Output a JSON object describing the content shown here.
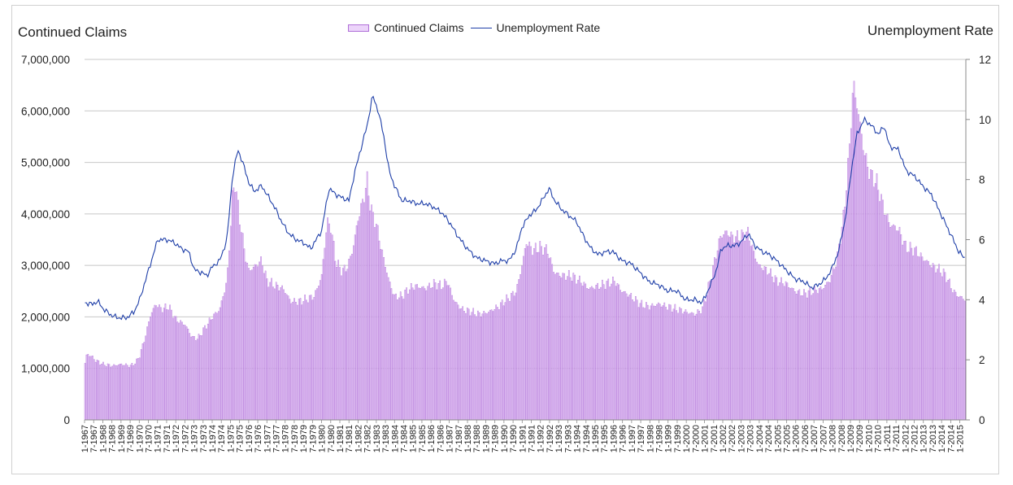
{
  "chart_data": {
    "type": "bar+line",
    "left_axis_title": "Continued Claims",
    "right_axis_title": "Unemployment Rate",
    "legend": [
      "Continued Claims",
      "Unemployment Rate"
    ],
    "left_ylim": [
      0,
      7000000
    ],
    "left_ticks": [
      "0",
      "1,000,000",
      "2,000,000",
      "3,000,000",
      "4,000,000",
      "5,000,000",
      "6,000,000",
      "7,000,000"
    ],
    "right_ylim": [
      0,
      12
    ],
    "right_ticks": [
      "0",
      "2",
      "4",
      "6",
      "8",
      "10",
      "12"
    ],
    "x_ticks": [
      "1-1967",
      "7-1967",
      "1-1968",
      "7-1968",
      "1-1969",
      "7-1969",
      "1-1970",
      "7-1970",
      "1-1971",
      "7-1971",
      "1-1972",
      "7-1972",
      "1-1973",
      "7-1973",
      "1-1974",
      "7-1974",
      "1-1975",
      "7-1975",
      "1-1976",
      "7-1976",
      "1-1977",
      "7-1977",
      "1-1978",
      "7-1978",
      "1-1979",
      "7-1979",
      "1-1980",
      "7-1980",
      "1-1981",
      "7-1981",
      "1-1982",
      "7-1982",
      "1-1983",
      "7-1983",
      "1-1984",
      "7-1984",
      "1-1985",
      "7-1985",
      "1-1986",
      "7-1986",
      "1-1987",
      "7-1987",
      "1-1988",
      "7-1988",
      "1-1989",
      "7-1989",
      "1-1990",
      "7-1990",
      "1-1991",
      "7-1991",
      "1-1992",
      "7-1992",
      "1-1993",
      "7-1993",
      "1-1994",
      "7-1994",
      "1-1995",
      "7-1995",
      "1-1996",
      "7-1996",
      "1-1997",
      "7-1997",
      "1-1998",
      "7-1998",
      "1-1999",
      "7-1999",
      "1-2000",
      "7-2000",
      "1-2001",
      "7-2001",
      "1-2002",
      "7-2002",
      "1-2003",
      "7-2003",
      "1-2004",
      "7-2004",
      "1-2005",
      "7-2005",
      "1-2006",
      "7-2006",
      "1-2007",
      "7-2007",
      "1-2008",
      "7-2008",
      "1-2009",
      "7-2009",
      "1-2010",
      "7-2010",
      "1-2011",
      "7-2011",
      "1-2012",
      "7-2012",
      "1-2013",
      "7-2013",
      "1-2014",
      "7-2014",
      "1-2015"
    ],
    "claims_anchors": [
      [
        1967.0,
        1100000
      ],
      [
        1967.1,
        1280000
      ],
      [
        1967.3,
        1250000
      ],
      [
        1967.6,
        1150000
      ],
      [
        1968.0,
        1080000
      ],
      [
        1968.5,
        1050000
      ],
      [
        1969.0,
        1080000
      ],
      [
        1969.5,
        1050000
      ],
      [
        1969.8,
        1120000
      ],
      [
        1970.0,
        1250000
      ],
      [
        1970.3,
        1600000
      ],
      [
        1970.6,
        2050000
      ],
      [
        1970.9,
        2250000
      ],
      [
        1971.2,
        2150000
      ],
      [
        1971.6,
        2200000
      ],
      [
        1972.0,
        1950000
      ],
      [
        1972.5,
        1850000
      ],
      [
        1972.9,
        1600000
      ],
      [
        1973.2,
        1580000
      ],
      [
        1973.6,
        1800000
      ],
      [
        1974.0,
        2000000
      ],
      [
        1974.4,
        2150000
      ],
      [
        1974.8,
        2700000
      ],
      [
        1975.1,
        4400000
      ],
      [
        1975.25,
        4600000
      ],
      [
        1975.5,
        3900000
      ],
      [
        1975.8,
        3200000
      ],
      [
        1976.0,
        2900000
      ],
      [
        1976.4,
        3000000
      ],
      [
        1976.7,
        3100000
      ],
      [
        1977.0,
        2700000
      ],
      [
        1977.5,
        2600000
      ],
      [
        1977.9,
        2550000
      ],
      [
        1978.3,
        2300000
      ],
      [
        1978.8,
        2300000
      ],
      [
        1979.2,
        2350000
      ],
      [
        1979.6,
        2400000
      ],
      [
        1980.0,
        2800000
      ],
      [
        1980.3,
        3850000
      ],
      [
        1980.5,
        3750000
      ],
      [
        1980.8,
        3050000
      ],
      [
        1981.1,
        2900000
      ],
      [
        1981.4,
        2950000
      ],
      [
        1981.7,
        3300000
      ],
      [
        1982.0,
        3900000
      ],
      [
        1982.3,
        4300000
      ],
      [
        1982.5,
        4650000
      ],
      [
        1982.7,
        4100000
      ],
      [
        1983.0,
        3800000
      ],
      [
        1983.3,
        3300000
      ],
      [
        1983.7,
        2700000
      ],
      [
        1984.0,
        2400000
      ],
      [
        1984.4,
        2400000
      ],
      [
        1984.8,
        2550000
      ],
      [
        1985.2,
        2600000
      ],
      [
        1985.7,
        2550000
      ],
      [
        1986.2,
        2650000
      ],
      [
        1986.6,
        2600000
      ],
      [
        1986.9,
        2700000
      ],
      [
        1987.3,
        2300000
      ],
      [
        1987.7,
        2150000
      ],
      [
        1988.2,
        2100000
      ],
      [
        1988.7,
        2050000
      ],
      [
        1989.2,
        2100000
      ],
      [
        1989.7,
        2200000
      ],
      [
        1990.2,
        2350000
      ],
      [
        1990.7,
        2500000
      ],
      [
        1991.0,
        3000000
      ],
      [
        1991.25,
        3450000
      ],
      [
        1991.6,
        3300000
      ],
      [
        1992.0,
        3350000
      ],
      [
        1992.4,
        3300000
      ],
      [
        1992.8,
        2850000
      ],
      [
        1993.2,
        2800000
      ],
      [
        1993.7,
        2800000
      ],
      [
        1994.2,
        2700000
      ],
      [
        1994.7,
        2550000
      ],
      [
        1995.2,
        2600000
      ],
      [
        1995.7,
        2650000
      ],
      [
        1996.1,
        2700000
      ],
      [
        1996.5,
        2500000
      ],
      [
        1997.0,
        2400000
      ],
      [
        1997.5,
        2250000
      ],
      [
        1998.0,
        2200000
      ],
      [
        1998.5,
        2250000
      ],
      [
        1999.0,
        2200000
      ],
      [
        1999.5,
        2150000
      ],
      [
        2000.0,
        2100000
      ],
      [
        2000.5,
        2050000
      ],
      [
        2000.9,
        2150000
      ],
      [
        2001.2,
        2500000
      ],
      [
        2001.6,
        3100000
      ],
      [
        2001.9,
        3550000
      ],
      [
        2002.2,
        3650000
      ],
      [
        2002.6,
        3550000
      ],
      [
        2003.0,
        3550000
      ],
      [
        2003.4,
        3650000
      ],
      [
        2003.7,
        3300000
      ],
      [
        2004.0,
        3000000
      ],
      [
        2004.5,
        2900000
      ],
      [
        2005.0,
        2700000
      ],
      [
        2005.5,
        2650000
      ],
      [
        2006.0,
        2500000
      ],
      [
        2006.5,
        2450000
      ],
      [
        2007.0,
        2500000
      ],
      [
        2007.5,
        2550000
      ],
      [
        2007.9,
        2700000
      ],
      [
        2008.3,
        3100000
      ],
      [
        2008.7,
        4000000
      ],
      [
        2009.0,
        5300000
      ],
      [
        2009.2,
        6550000
      ],
      [
        2009.45,
        6050000
      ],
      [
        2009.8,
        5200000
      ],
      [
        2010.1,
        4800000
      ],
      [
        2010.5,
        4600000
      ],
      [
        2010.9,
        4100000
      ],
      [
        2011.2,
        3800000
      ],
      [
        2011.7,
        3700000
      ],
      [
        2012.1,
        3350000
      ],
      [
        2012.6,
        3300000
      ],
      [
        2013.0,
        3150000
      ],
      [
        2013.5,
        3000000
      ],
      [
        2014.0,
        2900000
      ],
      [
        2014.3,
        2800000
      ],
      [
        2014.7,
        2500000
      ],
      [
        2015.0,
        2400000
      ],
      [
        2015.3,
        2350000
      ]
    ],
    "rate_anchors": [
      [
        1967.0,
        3.9
      ],
      [
        1967.4,
        3.85
      ],
      [
        1967.7,
        3.95
      ],
      [
        1968.0,
        3.7
      ],
      [
        1968.4,
        3.5
      ],
      [
        1968.8,
        3.4
      ],
      [
        1969.3,
        3.4
      ],
      [
        1969.7,
        3.6
      ],
      [
        1970.0,
        4.0
      ],
      [
        1970.4,
        4.8
      ],
      [
        1970.8,
        5.6
      ],
      [
        1971.0,
        6.0
      ],
      [
        1971.5,
        6.0
      ],
      [
        1971.9,
        5.9
      ],
      [
        1972.3,
        5.7
      ],
      [
        1972.7,
        5.6
      ],
      [
        1973.0,
        5.0
      ],
      [
        1973.4,
        4.9
      ],
      [
        1973.7,
        4.8
      ],
      [
        1974.0,
        5.1
      ],
      [
        1974.4,
        5.3
      ],
      [
        1974.8,
        6.0
      ],
      [
        1975.1,
        8.1
      ],
      [
        1975.4,
        9.0
      ],
      [
        1975.7,
        8.5
      ],
      [
        1976.0,
        7.9
      ],
      [
        1976.3,
        7.6
      ],
      [
        1976.7,
        7.8
      ],
      [
        1977.0,
        7.5
      ],
      [
        1977.4,
        7.1
      ],
      [
        1977.8,
        6.6
      ],
      [
        1978.2,
        6.2
      ],
      [
        1978.6,
        6.0
      ],
      [
        1979.0,
        5.9
      ],
      [
        1979.4,
        5.7
      ],
      [
        1979.7,
        6.0
      ],
      [
        1980.0,
        6.3
      ],
      [
        1980.4,
        7.7
      ],
      [
        1980.8,
        7.5
      ],
      [
        1981.1,
        7.4
      ],
      [
        1981.5,
        7.3
      ],
      [
        1981.8,
        8.2
      ],
      [
        1982.1,
        8.9
      ],
      [
        1982.5,
        9.8
      ],
      [
        1982.8,
        10.8
      ],
      [
        1983.1,
        10.3
      ],
      [
        1983.4,
        9.5
      ],
      [
        1983.7,
        8.3
      ],
      [
        1984.0,
        7.8
      ],
      [
        1984.4,
        7.3
      ],
      [
        1984.8,
        7.3
      ],
      [
        1985.2,
        7.2
      ],
      [
        1985.7,
        7.2
      ],
      [
        1986.1,
        7.1
      ],
      [
        1986.6,
        6.9
      ],
      [
        1987.0,
        6.6
      ],
      [
        1987.5,
        6.1
      ],
      [
        1988.0,
        5.7
      ],
      [
        1988.5,
        5.4
      ],
      [
        1989.0,
        5.3
      ],
      [
        1989.5,
        5.2
      ],
      [
        1989.9,
        5.3
      ],
      [
        1990.3,
        5.3
      ],
      [
        1990.7,
        5.7
      ],
      [
        1991.0,
        6.4
      ],
      [
        1991.4,
        6.8
      ],
      [
        1991.8,
        7.0
      ],
      [
        1992.1,
        7.3
      ],
      [
        1992.5,
        7.7
      ],
      [
        1992.8,
        7.3
      ],
      [
        1993.2,
        7.0
      ],
      [
        1993.6,
        6.8
      ],
      [
        1994.0,
        6.6
      ],
      [
        1994.4,
        6.1
      ],
      [
        1994.8,
        5.7
      ],
      [
        1995.2,
        5.5
      ],
      [
        1995.6,
        5.6
      ],
      [
        1996.0,
        5.6
      ],
      [
        1996.5,
        5.3
      ],
      [
        1997.0,
        5.2
      ],
      [
        1997.5,
        4.9
      ],
      [
        1998.0,
        4.6
      ],
      [
        1998.5,
        4.5
      ],
      [
        1999.0,
        4.3
      ],
      [
        1999.5,
        4.3
      ],
      [
        2000.0,
        4.0
      ],
      [
        2000.5,
        4.0
      ],
      [
        2000.9,
        3.9
      ],
      [
        2001.3,
        4.4
      ],
      [
        2001.7,
        5.0
      ],
      [
        2001.95,
        5.7
      ],
      [
        2002.3,
        5.8
      ],
      [
        2002.7,
        5.8
      ],
      [
        2003.0,
        5.9
      ],
      [
        2003.45,
        6.2
      ],
      [
        2003.8,
        5.8
      ],
      [
        2004.2,
        5.6
      ],
      [
        2004.6,
        5.5
      ],
      [
        2005.0,
        5.3
      ],
      [
        2005.5,
        5.0
      ],
      [
        2006.0,
        4.7
      ],
      [
        2006.5,
        4.6
      ],
      [
        2006.9,
        4.4
      ],
      [
        2007.3,
        4.5
      ],
      [
        2007.7,
        4.7
      ],
      [
        2008.0,
        5.0
      ],
      [
        2008.4,
        5.6
      ],
      [
        2008.8,
        6.8
      ],
      [
        2009.1,
        8.3
      ],
      [
        2009.4,
        9.5
      ],
      [
        2009.8,
        10.0
      ],
      [
        2010.2,
        9.8
      ],
      [
        2010.6,
        9.5
      ],
      [
        2010.9,
        9.8
      ],
      [
        2011.2,
        9.1
      ],
      [
        2011.7,
        9.0
      ],
      [
        2012.1,
        8.3
      ],
      [
        2012.6,
        8.1
      ],
      [
        2013.0,
        7.8
      ],
      [
        2013.5,
        7.5
      ],
      [
        2013.9,
        7.0
      ],
      [
        2014.3,
        6.5
      ],
      [
        2014.7,
        6.0
      ],
      [
        2015.0,
        5.6
      ],
      [
        2015.3,
        5.4
      ]
    ],
    "x_range": [
      1967.0,
      2015.33
    ]
  }
}
